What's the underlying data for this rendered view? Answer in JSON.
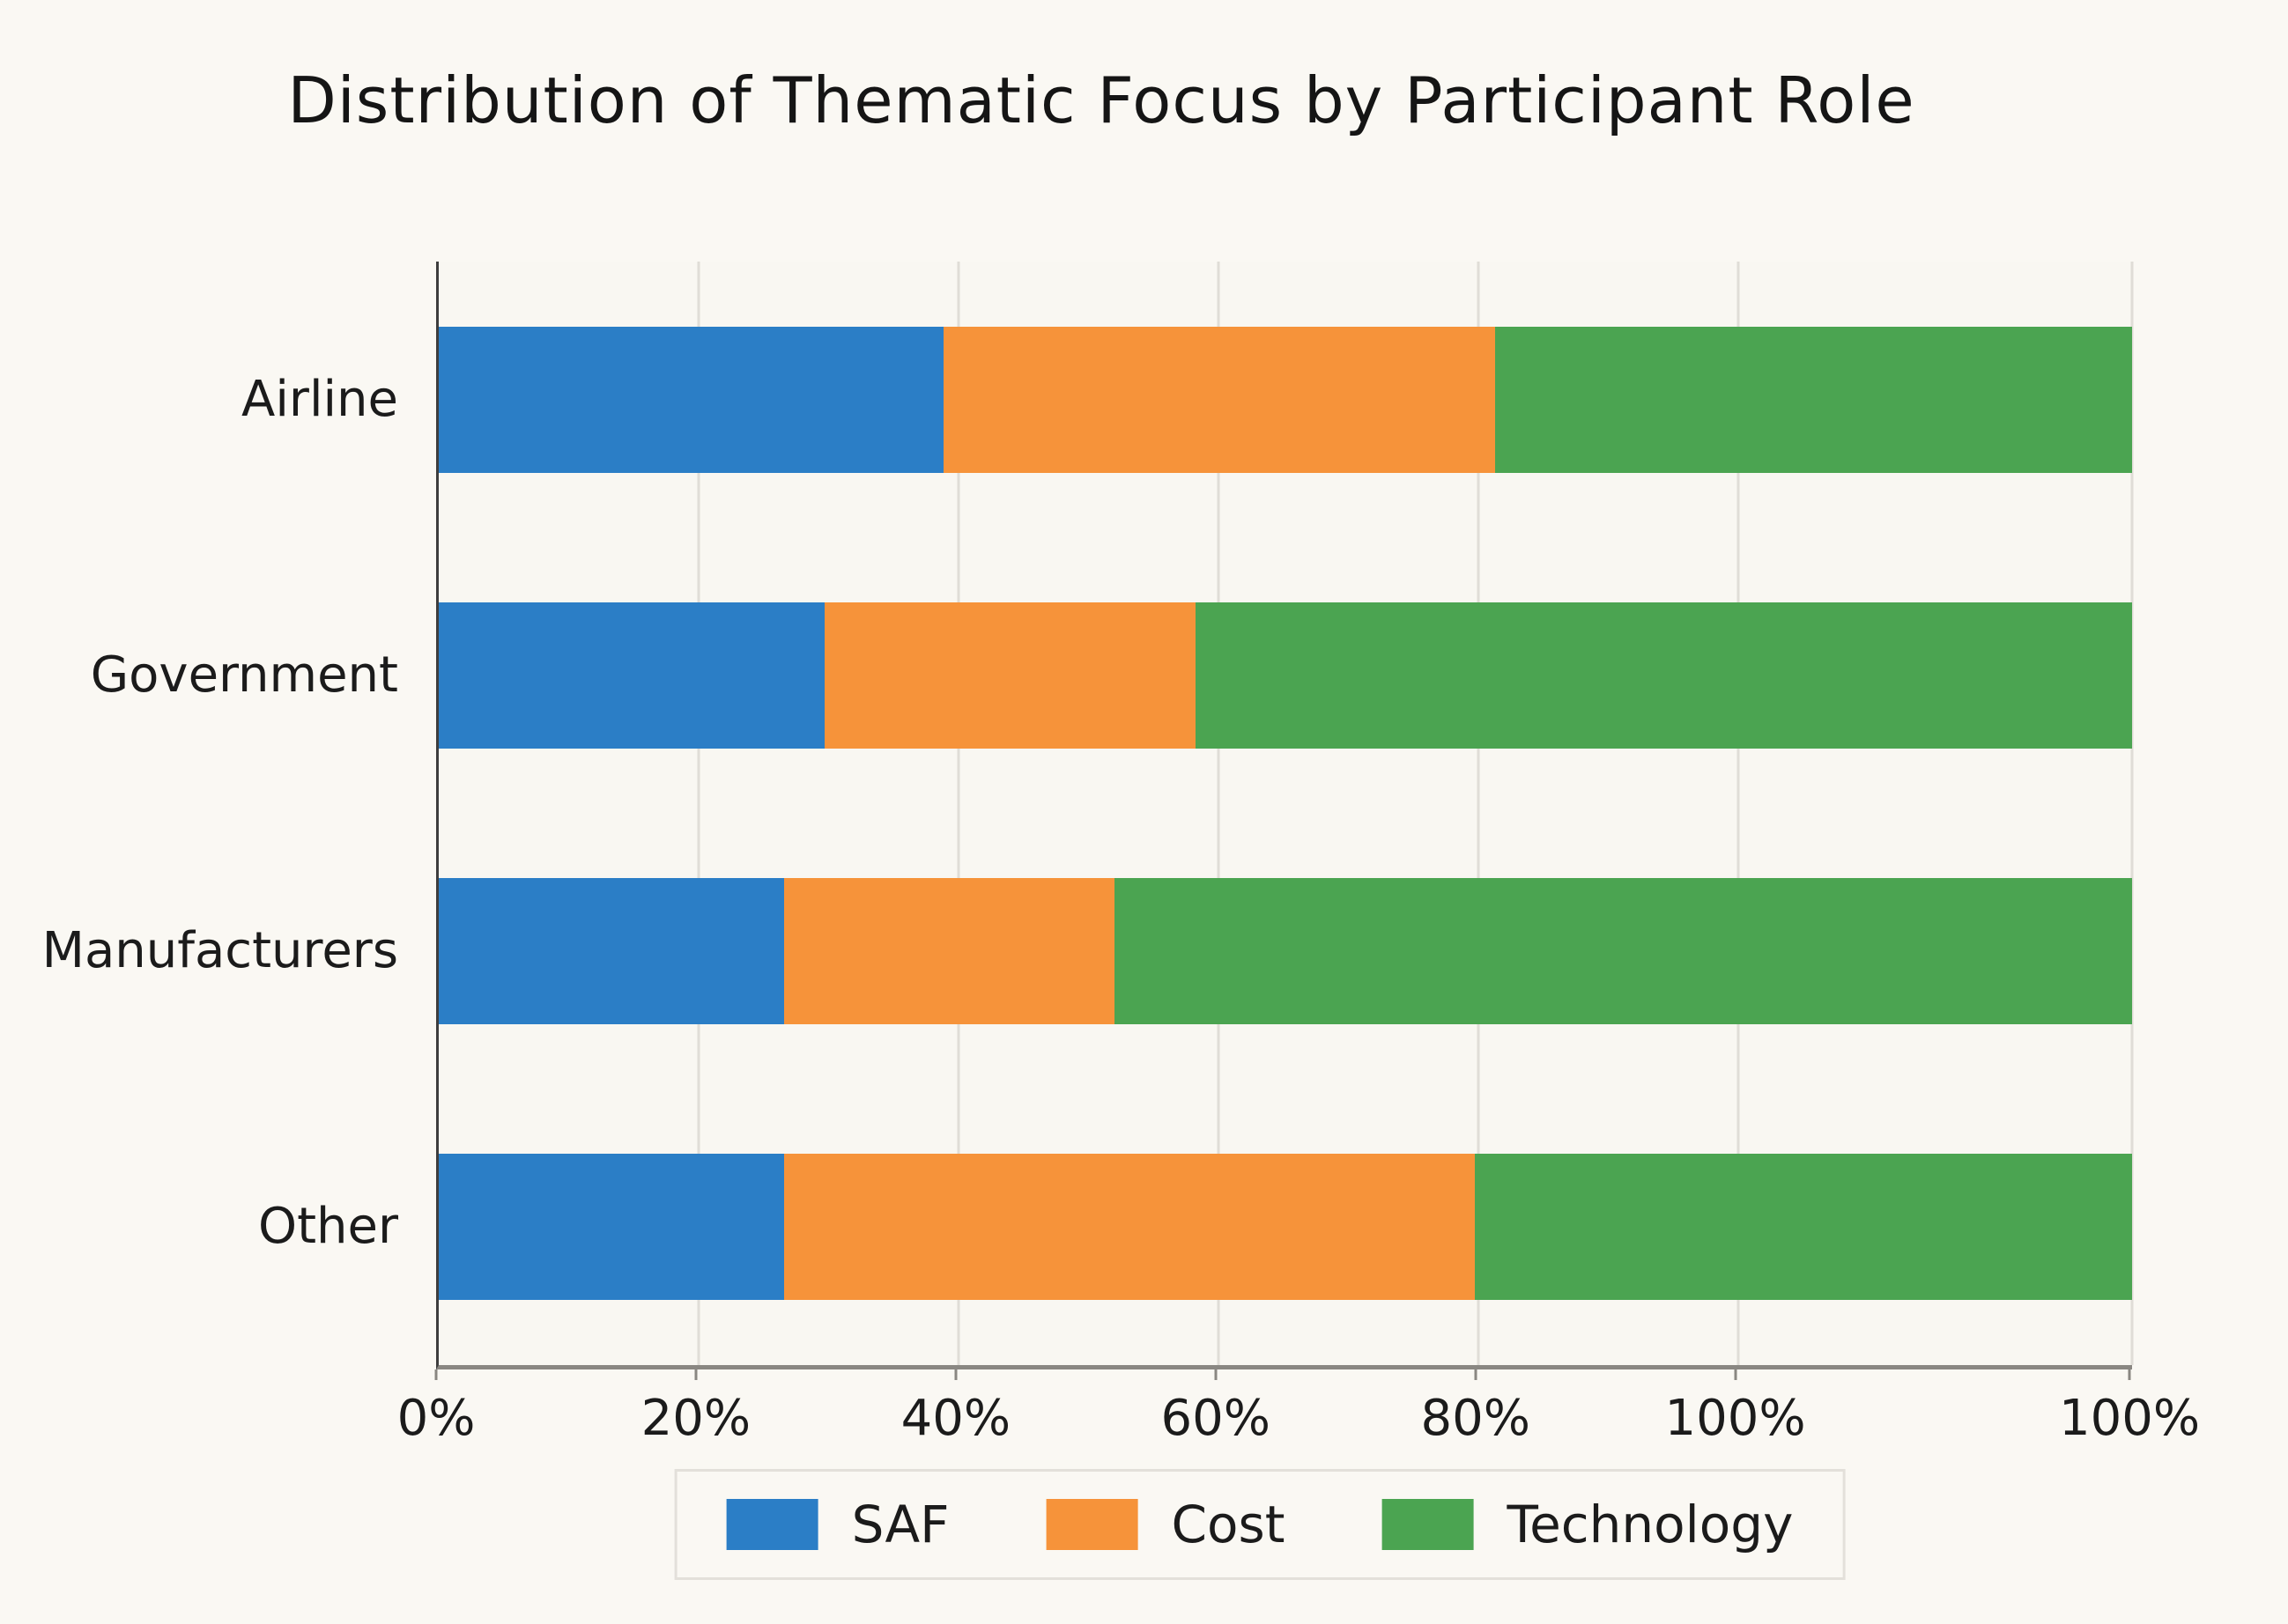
{
  "page": {
    "background_color": "#FAF8F3",
    "text_color": "#1B1B1B"
  },
  "chart_data": {
    "type": "bar",
    "subtype": "horizontal_stacked_100_percent",
    "title": "Distribution of Thematic Focus by Participant Role",
    "categories": [
      "Airline",
      "Government",
      "Manufacturers",
      "Other"
    ],
    "series": [
      {
        "name": "SAF",
        "color": "#2B7EC6",
        "values": [
          29.8,
          22.8,
          20.4,
          20.4
        ]
      },
      {
        "name": "Cost",
        "color": "#F6933A",
        "values": [
          32.6,
          21.9,
          19.5,
          40.8
        ]
      },
      {
        "name": "Technology",
        "color": "#4BA451",
        "values": [
          37.6,
          55.3,
          60.1,
          38.8
        ]
      }
    ],
    "values_unit": "percent of each bar (each bar stacks to 100%)",
    "x_ticks": [
      {
        "label": "0%",
        "pos": 0.0
      },
      {
        "label": "20%",
        "pos": 0.1534
      },
      {
        "label": "40%",
        "pos": 0.3069
      },
      {
        "label": "60%",
        "pos": 0.4603
      },
      {
        "label": "80%",
        "pos": 0.6138
      },
      {
        "label": "100%",
        "pos": 0.7672
      },
      {
        "label": "100%",
        "pos": 1.0
      }
    ],
    "xlabel": "",
    "ylabel": "",
    "grid": "vertical light gridlines on",
    "legend_position": "bottom center",
    "legend_entries": [
      "SAF",
      "Cost",
      "Technology"
    ],
    "colors": {
      "grid": "#E0DDD7",
      "left_spine": "#3D3D3D",
      "bottom_spine": "#8A8782",
      "background": "#FAF8F3"
    }
  }
}
